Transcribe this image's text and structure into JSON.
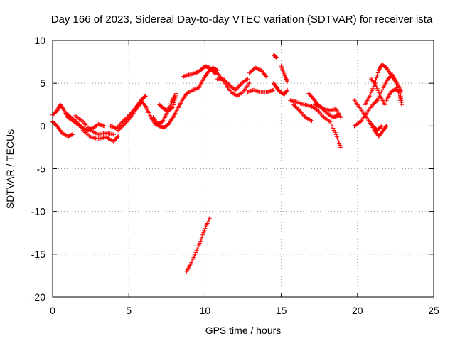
{
  "chart_data": {
    "type": "scatter",
    "title": "Day 166 of 2023, Sidereal Day-to-day VTEC variation (SDTVAR) for receiver ista",
    "xlabel": "GPS time / hours",
    "ylabel": "SDTVAR / TECUs",
    "xlim": [
      0,
      25
    ],
    "ylim": [
      -20,
      10
    ],
    "x_ticks": [
      "0",
      "5",
      "10",
      "15",
      "20",
      "25"
    ],
    "y_ticks": [
      "-20",
      "-15",
      "-10",
      "-5",
      "0",
      "5",
      "10"
    ],
    "grid": true,
    "marker": "+",
    "color": "#ff0000",
    "segments": [
      {
        "name": "arc-1a",
        "points": [
          [
            0.0,
            0.5
          ],
          [
            0.3,
            0.0
          ],
          [
            0.6,
            -0.8
          ],
          [
            1.0,
            -1.2
          ],
          [
            1.3,
            -1.0
          ]
        ]
      },
      {
        "name": "arc-1b",
        "points": [
          [
            0.0,
            1.3
          ],
          [
            0.3,
            1.8
          ],
          [
            0.5,
            2.5
          ],
          [
            0.7,
            2.0
          ],
          [
            1.0,
            1.0
          ],
          [
            1.4,
            0.5
          ],
          [
            1.8,
            0.0
          ],
          [
            2.3,
            -0.5
          ],
          [
            2.6,
            -0.3
          ],
          [
            3.0,
            0.2
          ],
          [
            3.4,
            0.0
          ]
        ]
      },
      {
        "name": "arc-1c",
        "points": [
          [
            0.9,
            1.5
          ],
          [
            1.2,
            1.0
          ],
          [
            1.6,
            0.5
          ],
          [
            2.0,
            -0.5
          ],
          [
            2.5,
            -1.3
          ],
          [
            3.0,
            -1.5
          ],
          [
            3.5,
            -1.3
          ],
          [
            4.0,
            -1.8
          ],
          [
            4.3,
            -1.2
          ]
        ]
      },
      {
        "name": "arc-1d",
        "points": [
          [
            1.5,
            1.2
          ],
          [
            2.0,
            0.5
          ],
          [
            2.5,
            -0.5
          ],
          [
            3.0,
            -1.0
          ],
          [
            3.5,
            -0.8
          ],
          [
            4.0,
            -1.0
          ]
        ]
      },
      {
        "name": "arc-2",
        "points": [
          [
            3.8,
            0.0
          ],
          [
            4.2,
            -0.3
          ],
          [
            4.6,
            0.5
          ],
          [
            5.0,
            1.2
          ],
          [
            5.3,
            1.8
          ],
          [
            5.6,
            2.5
          ],
          [
            5.9,
            3.2
          ],
          [
            6.1,
            3.5
          ]
        ]
      },
      {
        "name": "arc-2b",
        "points": [
          [
            4.3,
            -0.5
          ],
          [
            4.7,
            0.2
          ],
          [
            5.1,
            1.0
          ],
          [
            5.5,
            2.0
          ],
          [
            5.8,
            2.7
          ]
        ]
      },
      {
        "name": "arc-3",
        "points": [
          [
            5.8,
            3.0
          ],
          [
            6.1,
            2.3
          ],
          [
            6.4,
            1.2
          ],
          [
            6.7,
            0.3
          ],
          [
            7.0,
            0.0
          ],
          [
            7.3,
            -0.2
          ],
          [
            7.6,
            0.2
          ],
          [
            7.9,
            1.0
          ],
          [
            8.2,
            2.0
          ],
          [
            8.5,
            3.0
          ],
          [
            8.8,
            3.8
          ],
          [
            9.2,
            4.2
          ],
          [
            9.6,
            4.5
          ]
        ]
      },
      {
        "name": "arc-3b",
        "points": [
          [
            6.6,
            1.0
          ],
          [
            6.9,
            0.2
          ],
          [
            7.2,
            0.5
          ],
          [
            7.5,
            1.5
          ],
          [
            7.8,
            2.8
          ],
          [
            8.0,
            3.5
          ]
        ]
      },
      {
        "name": "arc-3c",
        "points": [
          [
            7.0,
            2.5
          ],
          [
            7.3,
            2.0
          ],
          [
            7.6,
            1.8
          ],
          [
            7.9,
            2.2
          ],
          [
            8.1,
            3.8
          ]
        ]
      },
      {
        "name": "arc-4",
        "points": [
          [
            8.6,
            5.8
          ],
          [
            9.0,
            6.0
          ],
          [
            9.4,
            6.2
          ],
          [
            9.7,
            6.5
          ],
          [
            10.0,
            7.0
          ],
          [
            10.3,
            6.8
          ],
          [
            10.6,
            6.2
          ]
        ]
      },
      {
        "name": "arc-4b",
        "points": [
          [
            9.6,
            4.5
          ],
          [
            9.9,
            5.5
          ],
          [
            10.2,
            6.3
          ],
          [
            10.5,
            6.8
          ],
          [
            10.8,
            6.5
          ]
        ]
      },
      {
        "name": "arc-5",
        "points": [
          [
            8.8,
            -17.0
          ],
          [
            9.1,
            -16.0
          ],
          [
            9.4,
            -14.8
          ],
          [
            9.7,
            -13.5
          ],
          [
            10.0,
            -12.0
          ],
          [
            10.3,
            -10.8
          ]
        ]
      },
      {
        "name": "arc-6",
        "points": [
          [
            10.5,
            6.5
          ],
          [
            10.9,
            6.0
          ],
          [
            11.3,
            5.0
          ],
          [
            11.7,
            4.0
          ],
          [
            12.1,
            3.5
          ],
          [
            12.5,
            4.0
          ],
          [
            12.9,
            5.0
          ]
        ]
      },
      {
        "name": "arc-6b",
        "points": [
          [
            10.8,
            5.5
          ],
          [
            11.2,
            5.5
          ],
          [
            11.6,
            4.8
          ],
          [
            12.0,
            4.2
          ],
          [
            12.4,
            5.0
          ],
          [
            12.8,
            5.5
          ]
        ]
      },
      {
        "name": "arc-7",
        "points": [
          [
            12.9,
            6.2
          ],
          [
            13.3,
            6.8
          ],
          [
            13.7,
            6.5
          ],
          [
            14.0,
            5.8
          ]
        ]
      },
      {
        "name": "arc-8",
        "points": [
          [
            12.8,
            4.0
          ],
          [
            13.2,
            4.2
          ],
          [
            13.6,
            4.0
          ],
          [
            14.1,
            4.0
          ],
          [
            14.5,
            4.2
          ]
        ]
      },
      {
        "name": "arc-9",
        "points": [
          [
            14.5,
            5.0
          ],
          [
            14.7,
            4.5
          ],
          [
            14.9,
            4.0
          ],
          [
            15.2,
            3.7
          ],
          [
            15.4,
            4.2
          ]
        ]
      },
      {
        "name": "arc-9b",
        "points": [
          [
            14.5,
            8.3
          ],
          [
            14.7,
            8.0
          ]
        ]
      },
      {
        "name": "arc-9c",
        "points": [
          [
            15.0,
            7.0
          ],
          [
            15.2,
            6.0
          ],
          [
            15.4,
            5.2
          ]
        ]
      },
      {
        "name": "arc-10",
        "points": [
          [
            15.6,
            3.0
          ],
          [
            16.0,
            2.8
          ],
          [
            16.5,
            2.5
          ],
          [
            17.0,
            2.3
          ],
          [
            17.4,
            1.8
          ],
          [
            17.8,
            1.0
          ],
          [
            18.2,
            0.5
          ],
          [
            18.6,
            -1.0
          ],
          [
            18.9,
            -2.5
          ]
        ]
      },
      {
        "name": "arc-10b",
        "points": [
          [
            15.8,
            2.5
          ],
          [
            16.2,
            1.8
          ],
          [
            16.6,
            1.0
          ],
          [
            17.0,
            0.6
          ]
        ]
      },
      {
        "name": "arc-10c",
        "points": [
          [
            16.8,
            3.8
          ],
          [
            17.1,
            3.2
          ],
          [
            17.4,
            2.5
          ],
          [
            17.8,
            2.0
          ],
          [
            18.2,
            1.8
          ],
          [
            18.6,
            2.0
          ],
          [
            18.9,
            1.0
          ]
        ]
      },
      {
        "name": "arc-10d",
        "points": [
          [
            17.2,
            2.5
          ],
          [
            17.6,
            2.2
          ],
          [
            18.0,
            1.5
          ],
          [
            18.4,
            1.0
          ],
          [
            18.7,
            1.2
          ]
        ]
      },
      {
        "name": "arc-11",
        "points": [
          [
            19.8,
            3.0
          ],
          [
            20.2,
            2.0
          ],
          [
            20.6,
            1.0
          ],
          [
            21.0,
            0.0
          ],
          [
            21.3,
            -0.5
          ],
          [
            21.6,
            0.0
          ]
        ]
      },
      {
        "name": "arc-11b",
        "points": [
          [
            19.8,
            0.0
          ],
          [
            20.2,
            0.5
          ],
          [
            20.6,
            1.5
          ],
          [
            21.0,
            2.5
          ],
          [
            21.3,
            3.0
          ],
          [
            21.7,
            4.5
          ],
          [
            22.0,
            5.5
          ],
          [
            22.3,
            6.0
          ],
          [
            22.6,
            5.0
          ],
          [
            22.9,
            4.0
          ]
        ]
      },
      {
        "name": "arc-11c",
        "points": [
          [
            20.5,
            2.5
          ],
          [
            20.8,
            3.5
          ],
          [
            21.1,
            4.8
          ],
          [
            21.4,
            6.5
          ],
          [
            21.6,
            7.2
          ],
          [
            21.9,
            6.8
          ],
          [
            22.2,
            6.0
          ],
          [
            22.5,
            5.2
          ],
          [
            22.8,
            3.0
          ]
        ]
      },
      {
        "name": "arc-11d",
        "points": [
          [
            20.8,
            0.5
          ],
          [
            21.1,
            -0.5
          ],
          [
            21.4,
            -1.2
          ],
          [
            21.7,
            -0.5
          ],
          [
            21.9,
            0.0
          ]
        ]
      },
      {
        "name": "arc-11e",
        "points": [
          [
            21.9,
            3.0
          ],
          [
            22.2,
            4.0
          ],
          [
            22.5,
            4.3
          ],
          [
            22.8,
            4.0
          ],
          [
            22.9,
            2.5
          ]
        ]
      },
      {
        "name": "arc-11f",
        "points": [
          [
            20.9,
            5.5
          ],
          [
            21.2,
            4.8
          ],
          [
            21.5,
            3.5
          ],
          [
            21.8,
            2.5
          ]
        ]
      }
    ]
  }
}
